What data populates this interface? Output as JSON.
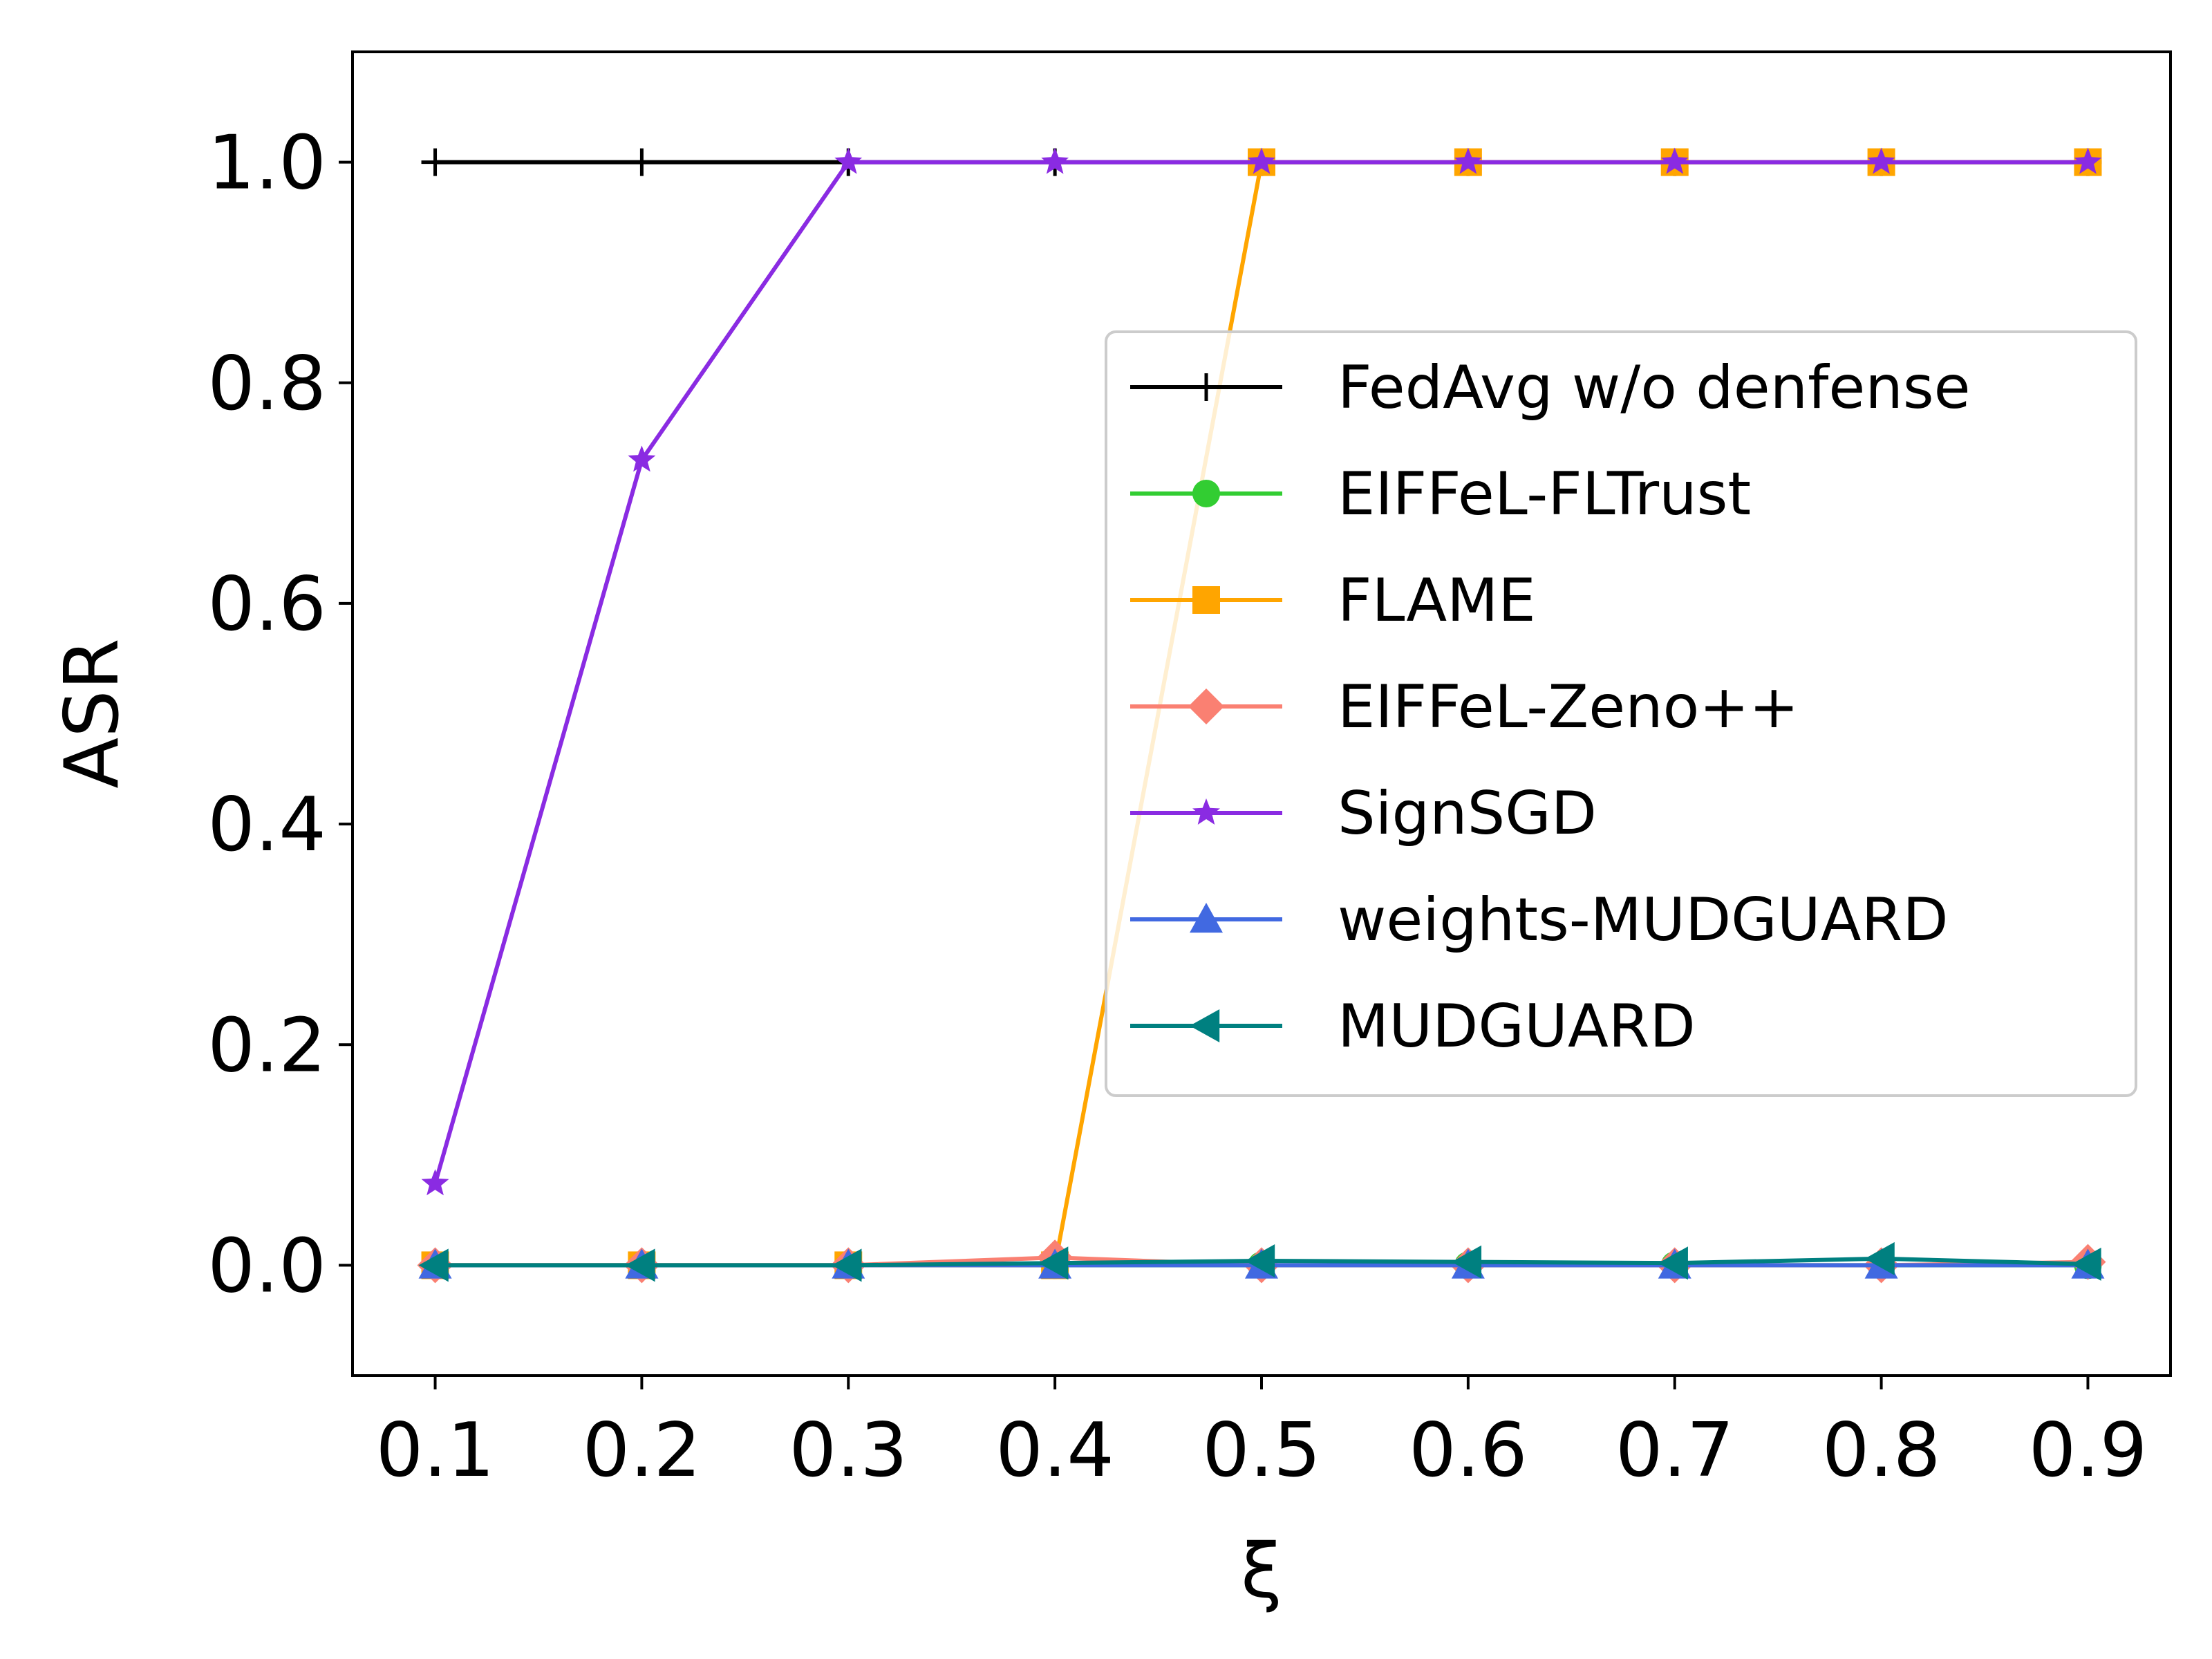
{
  "chart_data": {
    "type": "line",
    "xlabel": "ξ",
    "ylabel": "ASR",
    "x": [
      0.1,
      0.2,
      0.3,
      0.4,
      0.5,
      0.6,
      0.7,
      0.8,
      0.9
    ],
    "x_tick_labels": [
      "0.1",
      "0.2",
      "0.3",
      "0.4",
      "0.5",
      "0.6",
      "0.7",
      "0.8",
      "0.9"
    ],
    "y_ticks": [
      0.0,
      0.2,
      0.4,
      0.6,
      0.8,
      1.0
    ],
    "y_tick_labels": [
      "0.0",
      "0.2",
      "0.4",
      "0.6",
      "0.8",
      "1.0"
    ],
    "xlim": [
      0.06,
      0.94
    ],
    "ylim": [
      -0.1,
      1.1
    ],
    "grid": false,
    "legend_position": "center-right",
    "series": [
      {
        "name": "FedAvg w/o denfense",
        "color": "#000000",
        "marker": "plus",
        "values": [
          1.0,
          1.0,
          1.0,
          1.0,
          1.0,
          1.0,
          1.0,
          1.0,
          1.0
        ]
      },
      {
        "name": "EIFFeL-FLTrust",
        "color": "#32cd32",
        "marker": "circle",
        "values": [
          0.0,
          0.0,
          0.0,
          0.0,
          0.0,
          0.0,
          0.0,
          0.0,
          0.0
        ]
      },
      {
        "name": "FLAME",
        "color": "#ffa500",
        "marker": "square",
        "values": [
          0.0,
          0.0,
          0.0,
          0.0,
          1.0,
          1.0,
          1.0,
          1.0,
          1.0
        ]
      },
      {
        "name": "EIFFeL-Zeno++",
        "color": "#fa8072",
        "marker": "diamond",
        "values": [
          0.0,
          0.0,
          0.0,
          0.007,
          0.0,
          0.0,
          0.0,
          0.0,
          0.003
        ]
      },
      {
        "name": "SignSGD",
        "color": "#8a2be2",
        "marker": "star",
        "values": [
          0.074,
          0.73,
          1.0,
          1.0,
          1.0,
          1.0,
          1.0,
          1.0,
          1.0
        ]
      },
      {
        "name": "weights-MUDGUARD",
        "color": "#4169e1",
        "marker": "triangle-up",
        "values": [
          0.0,
          0.0,
          0.0,
          0.0,
          0.0,
          0.0,
          0.0,
          0.0,
          0.0
        ]
      },
      {
        "name": "MUDGUARD",
        "color": "#008080",
        "marker": "triangle-left",
        "values": [
          0.0,
          0.0,
          0.0,
          0.002,
          0.004,
          0.003,
          0.002,
          0.006,
          0.001
        ]
      }
    ]
  }
}
